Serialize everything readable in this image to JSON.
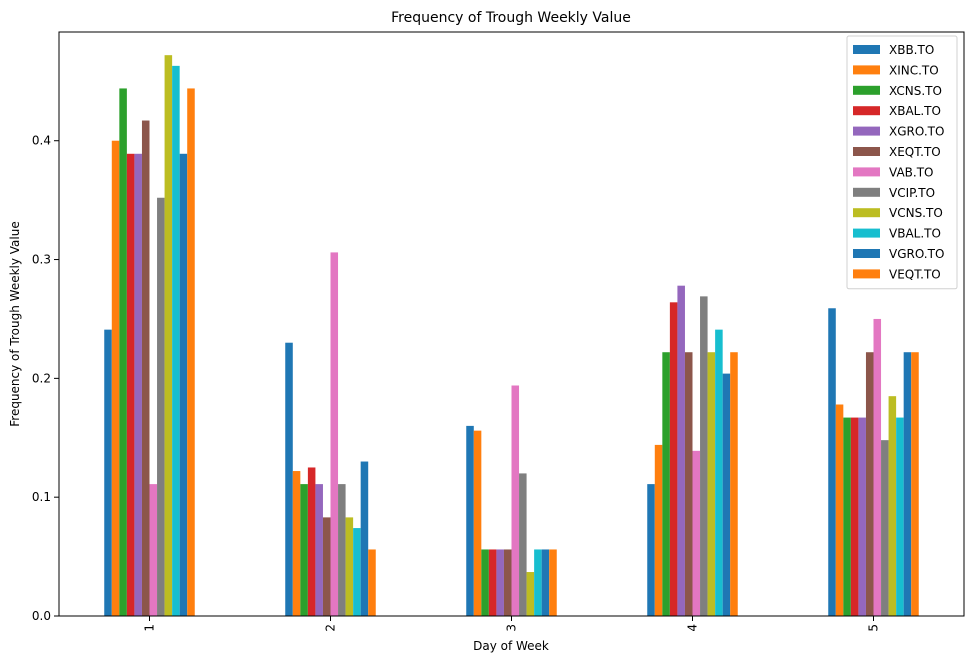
{
  "chart_data": {
    "type": "bar",
    "title": "Frequency of Trough Weekly Value",
    "xlabel": "Day of Week",
    "ylabel": "Frequency of Trough Weekly Value",
    "categories": [
      "1",
      "2",
      "3",
      "4",
      "5"
    ],
    "ylim": [
      0,
      0.4915
    ],
    "yticks": [
      "0.0",
      "0.1",
      "0.2",
      "0.3",
      "0.4"
    ],
    "grid": false,
    "legend_position": "top-right",
    "series": [
      {
        "name": "XBB.TO",
        "color": "#1f77b4",
        "values": [
          0.241,
          0.23,
          0.16,
          0.111,
          0.259
        ]
      },
      {
        "name": "XINC.TO",
        "color": "#ff7f0e",
        "values": [
          0.4,
          0.122,
          0.156,
          0.144,
          0.178
        ]
      },
      {
        "name": "XCNS.TO",
        "color": "#2ca02c",
        "values": [
          0.444,
          0.111,
          0.056,
          0.222,
          0.167
        ]
      },
      {
        "name": "XBAL.TO",
        "color": "#d62728",
        "values": [
          0.389,
          0.125,
          0.056,
          0.264,
          0.167
        ]
      },
      {
        "name": "XGRO.TO",
        "color": "#9467bd",
        "values": [
          0.389,
          0.111,
          0.056,
          0.278,
          0.167
        ]
      },
      {
        "name": "XEQT.TO",
        "color": "#8c564b",
        "values": [
          0.417,
          0.083,
          0.056,
          0.222,
          0.222
        ]
      },
      {
        "name": "VAB.TO",
        "color": "#e377c2",
        "values": [
          0.111,
          0.306,
          0.194,
          0.139,
          0.25
        ]
      },
      {
        "name": "VCIP.TO",
        "color": "#7f7f7f",
        "values": [
          0.352,
          0.111,
          0.12,
          0.269,
          0.148
        ]
      },
      {
        "name": "VCNS.TO",
        "color": "#bcbd22",
        "values": [
          0.472,
          0.083,
          0.037,
          0.222,
          0.185
        ]
      },
      {
        "name": "VBAL.TO",
        "color": "#17becf",
        "values": [
          0.463,
          0.074,
          0.056,
          0.241,
          0.167
        ]
      },
      {
        "name": "VGRO.TO",
        "color": "#1f77b4",
        "values": [
          0.389,
          0.13,
          0.056,
          0.204,
          0.222
        ]
      },
      {
        "name": "VEQT.TO",
        "color": "#ff7f0e",
        "values": [
          0.444,
          0.056,
          0.056,
          0.222,
          0.222
        ]
      }
    ]
  }
}
